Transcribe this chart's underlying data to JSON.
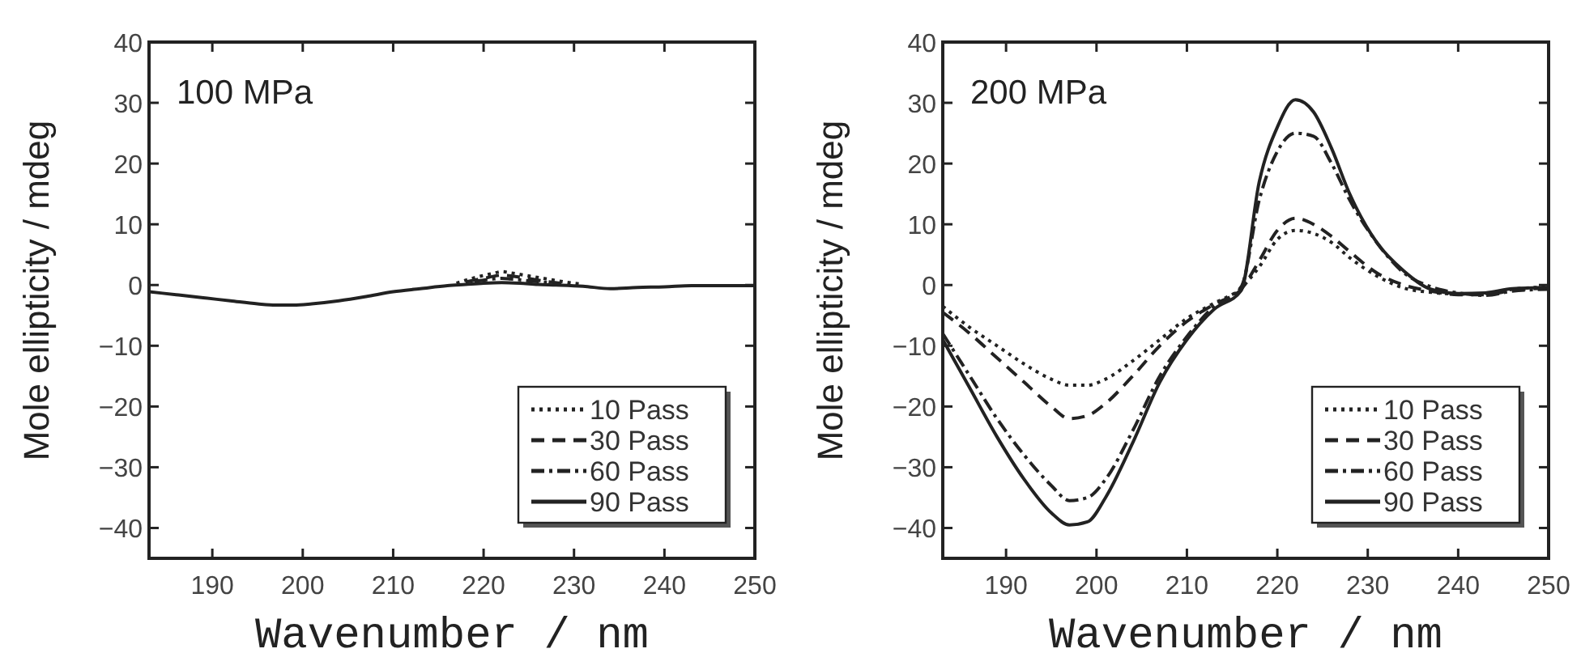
{
  "chart_data": [
    {
      "type": "line",
      "annotations": [
        "100 MPa"
      ],
      "xlabel": "Wavenumber / nm",
      "ylabel": "Mole ellipticity / mdeg",
      "xlim": [
        183,
        250
      ],
      "xticks": [
        190,
        200,
        210,
        220,
        230,
        240,
        250
      ],
      "ylim": [
        -45,
        40
      ],
      "yticks": [
        -40,
        -30,
        -20,
        -10,
        0,
        10,
        20,
        30,
        40
      ],
      "legend": "bottom right",
      "x": [
        183,
        186,
        189,
        192,
        195,
        197,
        199,
        201,
        204,
        207,
        210,
        213,
        216,
        218,
        220,
        222,
        224,
        226,
        228,
        231,
        234,
        237,
        240,
        243,
        246,
        250
      ],
      "series": [
        {
          "name": "10 Pass",
          "color": "#222222",
          "line_style": "dotted",
          "x": [
            217,
            219,
            221,
            222,
            223,
            225,
            227,
            229,
            231
          ],
          "values": [
            0.3,
            1.2,
            1.9,
            2.2,
            2,
            1.5,
            1,
            0.5,
            0.1
          ]
        },
        {
          "name": "30 Pass",
          "color": "#222222",
          "line_style": "dashed",
          "x": [
            218,
            220,
            222,
            224,
            226,
            229
          ],
          "values": [
            0.5,
            1.1,
            1.6,
            1.3,
            0.8,
            0.2
          ]
        },
        {
          "name": "60 Pass",
          "color": "#222222",
          "line_style": "dashdot",
          "x": [
            219,
            221,
            222,
            223,
            225,
            227
          ],
          "values": [
            0.6,
            1,
            1.1,
            1,
            0.7,
            0.4
          ]
        },
        {
          "name": "90 Pass",
          "color": "#222222",
          "line_style": "solid",
          "values": [
            -1.1,
            -1.6,
            -2.1,
            -2.6,
            -3.1,
            -3.3,
            -3.3,
            -3.1,
            -2.6,
            -1.9,
            -1.1,
            -0.6,
            -0.1,
            0.1,
            0.3,
            0.4,
            0.3,
            0.1,
            0,
            -0.2,
            -0.6,
            -0.4,
            -0.3,
            -0.1,
            -0.1,
            -0.1
          ]
        }
      ]
    },
    {
      "type": "line",
      "annotations": [
        "200 MPa"
      ],
      "xlabel": "Wavenumber / nm",
      "ylabel": "Mole ellipticity / mdeg",
      "xlim": [
        183,
        250
      ],
      "xticks": [
        190,
        200,
        210,
        220,
        230,
        240,
        250
      ],
      "ylim": [
        -45,
        40
      ],
      "yticks": [
        -40,
        -30,
        -20,
        -10,
        0,
        10,
        20,
        30,
        40
      ],
      "legend": "bottom right",
      "x": [
        183,
        186,
        189,
        192,
        195,
        197,
        199,
        201,
        204,
        207,
        210,
        213,
        216,
        218,
        220,
        222,
        224,
        226,
        228,
        231,
        234,
        237,
        240,
        243,
        246,
        250
      ],
      "series": [
        {
          "name": "10 Pass",
          "color": "#222222",
          "line_style": "dotted",
          "values": [
            -3.5,
            -7,
            -10,
            -13,
            -15.5,
            -16.5,
            -16.5,
            -15.5,
            -12.5,
            -9,
            -5.5,
            -3,
            -0.5,
            3,
            7.5,
            9,
            8.5,
            7,
            4.5,
            1.5,
            -0.5,
            -1.2,
            -1.5,
            -1.4,
            -0.7,
            -0.3
          ]
        },
        {
          "name": "30 Pass",
          "color": "#222222",
          "line_style": "dashed",
          "values": [
            -4.5,
            -8,
            -12,
            -16,
            -20,
            -22,
            -21.5,
            -19.5,
            -15,
            -10,
            -6,
            -3.2,
            -0.7,
            4,
            9,
            11,
            10,
            8,
            5.5,
            2,
            0,
            -1,
            -1.6,
            -1.6,
            -0.9,
            -0.5
          ]
        },
        {
          "name": "60 Pass",
          "color": "#222222",
          "line_style": "dashdot",
          "values": [
            -8,
            -15,
            -22,
            -28,
            -33,
            -35.5,
            -35,
            -32,
            -24,
            -15,
            -8.5,
            -3.5,
            -0.3,
            14,
            22,
            25,
            24.5,
            20,
            14,
            7,
            2,
            -0.3,
            -1.3,
            -1.7,
            -1,
            -0.7
          ]
        },
        {
          "name": "90 Pass",
          "color": "#222222",
          "line_style": "solid",
          "values": [
            -9,
            -17,
            -25,
            -32,
            -37.5,
            -39.5,
            -39,
            -35,
            -26,
            -16,
            -9,
            -4,
            -0.9,
            17,
            26,
            30.5,
            28.5,
            22.5,
            15,
            7,
            2.3,
            -0.7,
            -1.4,
            -1.3,
            -0.6,
            -0.4
          ]
        }
      ]
    }
  ]
}
